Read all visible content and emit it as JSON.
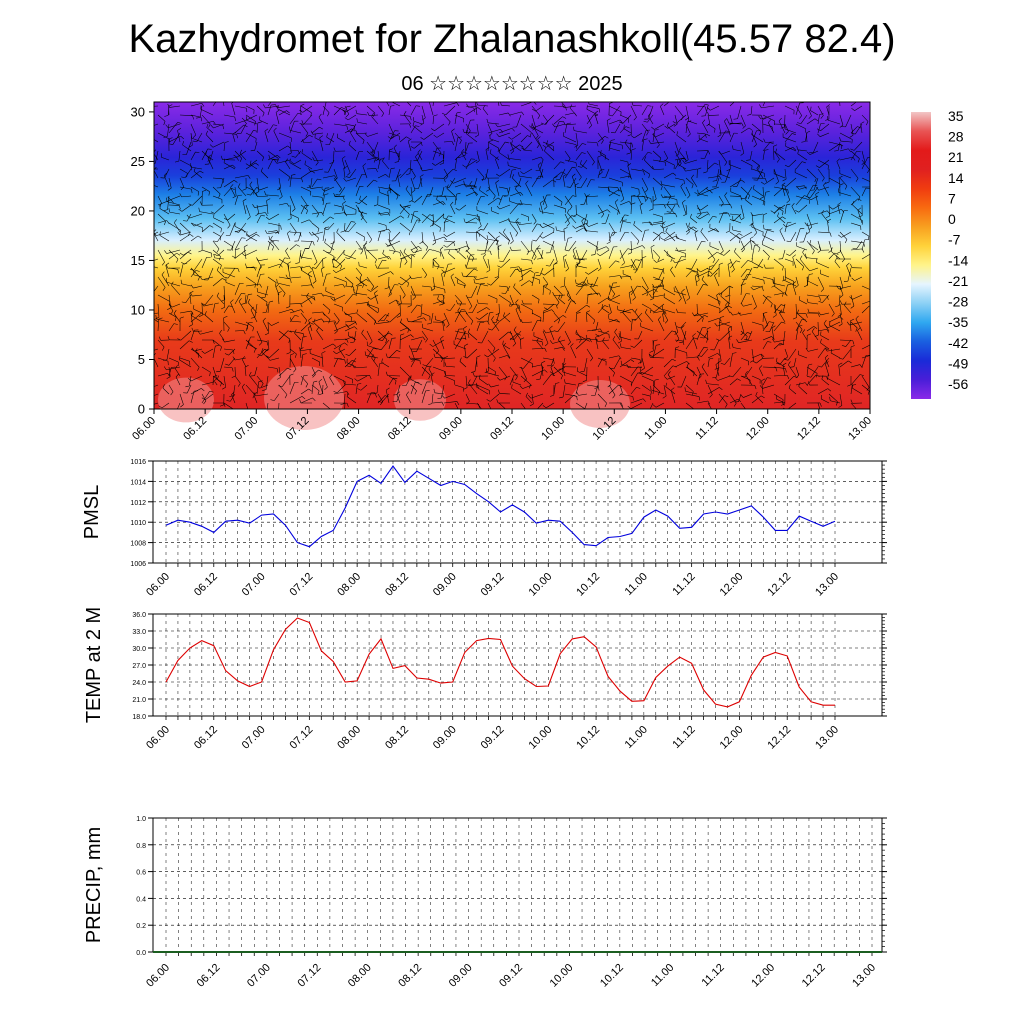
{
  "title": "Kazhydromet for Zhalanashkoll(45.57 82.4)",
  "subtitle": "06 ☆☆☆☆☆☆☆☆ 2025",
  "chart_data": [
    {
      "type": "heatmap",
      "name": "cross-section",
      "description_of_field": "filled contours of temperature by height with wind barbs",
      "y": {
        "ticks": [
          "0",
          "5",
          "10",
          "15",
          "20",
          "25",
          "30"
        ],
        "lim": [
          0,
          31
        ]
      },
      "x": {
        "ticks": [
          "06.00",
          "06.12",
          "07.00",
          "07.12",
          "08.00",
          "08.12",
          "09.00",
          "09.12",
          "10.00",
          "10.12",
          "11.00",
          "11.12",
          "12.00",
          "12.12",
          "13.00"
        ]
      },
      "colorbar": {
        "labels": [
          "35",
          "28",
          "21",
          "14",
          "7",
          "0",
          "-7",
          "-14",
          "-21",
          "-28",
          "-35",
          "-42",
          "-49",
          "-56"
        ],
        "colors": [
          "#f2c6c6",
          "#e85454",
          "#e31a1a",
          "#e02020",
          "#f03c10",
          "#f86a10",
          "#f8a020",
          "#ffd23a",
          "#fff48a",
          "#e6f5ff",
          "#8cd0f5",
          "#2fa8f0",
          "#1a5fe0",
          "#1a2ad8",
          "#4a1ed8",
          "#8a2ae8"
        ]
      }
    },
    {
      "type": "line",
      "ylabel": "PMSL",
      "ylim": [
        1006,
        1016
      ],
      "yticks": [
        "1006",
        "1008",
        "1010",
        "1012",
        "1014",
        "1016"
      ],
      "xticks": [
        "06.00",
        "06.12",
        "07.00",
        "07.12",
        "08.00",
        "08.12",
        "09.00",
        "09.12",
        "10.00",
        "10.12",
        "11.00",
        "11.12",
        "12.00",
        "12.12",
        "13.00"
      ],
      "color": "#0000dd",
      "values": [
        1009.7,
        1010.2,
        1010.0,
        1009.6,
        1009.0,
        1010.1,
        1010.2,
        1009.9,
        1010.7,
        1010.8,
        1009.7,
        1008.0,
        1007.6,
        1008.6,
        1009.2,
        1011.4,
        1014.0,
        1014.6,
        1013.8,
        1015.5,
        1013.9,
        1015.0,
        1014.3,
        1013.6,
        1014.0,
        1013.7,
        1012.8,
        1012.0,
        1011.0,
        1011.7,
        1011.0,
        1009.9,
        1010.2,
        1010.1,
        1009.0,
        1007.8,
        1007.7,
        1008.5,
        1008.6,
        1008.9,
        1010.5,
        1011.2,
        1010.6,
        1009.4,
        1009.5,
        1010.8,
        1011.0,
        1010.8,
        1011.2,
        1011.6,
        1010.5,
        1009.2,
        1009.2,
        1010.6,
        1010.1,
        1009.6,
        1010.1
      ]
    },
    {
      "type": "line",
      "ylabel": "TEMP at 2 M",
      "ylim": [
        18,
        36
      ],
      "yticks": [
        "18.0",
        "21.0",
        "24.0",
        "27.0",
        "30.0",
        "33.0",
        "36.0"
      ],
      "xticks": [
        "06.00",
        "06.12",
        "07.00",
        "07.12",
        "08.00",
        "08.12",
        "09.00",
        "09.12",
        "10.00",
        "10.12",
        "11.00",
        "11.12",
        "12.00",
        "12.12",
        "13.00"
      ],
      "color": "#dd0000",
      "values": [
        24.0,
        27.8,
        30.0,
        31.3,
        30.4,
        26.0,
        24.2,
        23.2,
        24.0,
        29.7,
        33.3,
        35.3,
        34.5,
        29.5,
        27.6,
        24.0,
        24.2,
        28.9,
        31.6,
        26.4,
        26.9,
        24.7,
        24.5,
        23.8,
        24.0,
        29.2,
        31.3,
        31.7,
        31.5,
        26.8,
        24.6,
        23.2,
        23.3,
        29.0,
        31.6,
        32.0,
        30.2,
        25.0,
        22.4,
        20.6,
        20.7,
        24.8,
        26.8,
        28.4,
        27.3,
        22.6,
        20.1,
        19.6,
        20.5,
        25.2,
        28.4,
        29.2,
        28.6,
        23.1,
        20.5,
        19.9,
        19.9
      ]
    },
    {
      "type": "bar",
      "ylabel": "PRECIP, mm",
      "ylim": [
        0,
        1
      ],
      "yticks": [
        "0.0",
        "0.2",
        "0.4",
        "0.6",
        "0.8",
        "1.0"
      ],
      "xticks": [
        "06.00",
        "06.12",
        "07.00",
        "07.12",
        "08.00",
        "08.12",
        "09.00",
        "09.12",
        "10.00",
        "10.12",
        "11.00",
        "11.12",
        "12.00",
        "12.12",
        "13.00"
      ],
      "values": []
    }
  ]
}
